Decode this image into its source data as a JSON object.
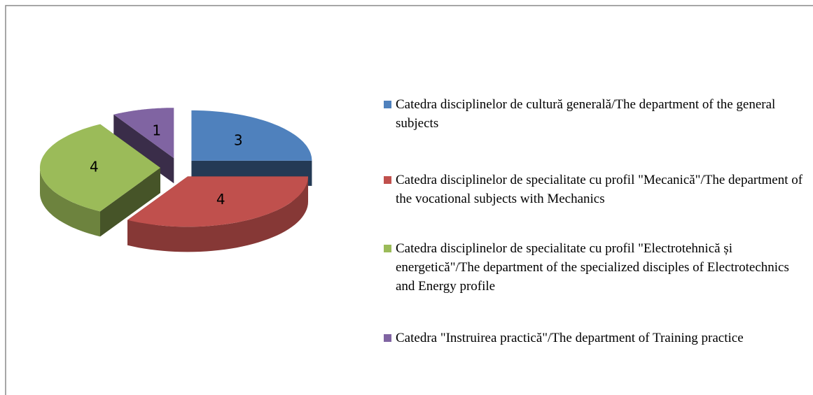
{
  "chart_data": {
    "type": "pie",
    "categories": [
      "Catedra disciplinelor de cultură generală/The department of the general subjects",
      "Catedra disciplinelor de specialitate cu profil \"Mecanică\"/The department of the vocational subjects with Mechanics",
      "Catedra disciplinelor de specialitate cu profil \"Electrotehnică și energetică\"/The department of the specialized disciples of Electrotechnics and Energy profile",
      "Catedra \"Instruirea practică\"/The department of Training practice"
    ],
    "values": [
      3,
      4,
      4,
      1
    ],
    "colors": [
      "#4f81bd",
      "#c0504d",
      "#9bbb59",
      "#8064a2"
    ],
    "legend": "right"
  }
}
